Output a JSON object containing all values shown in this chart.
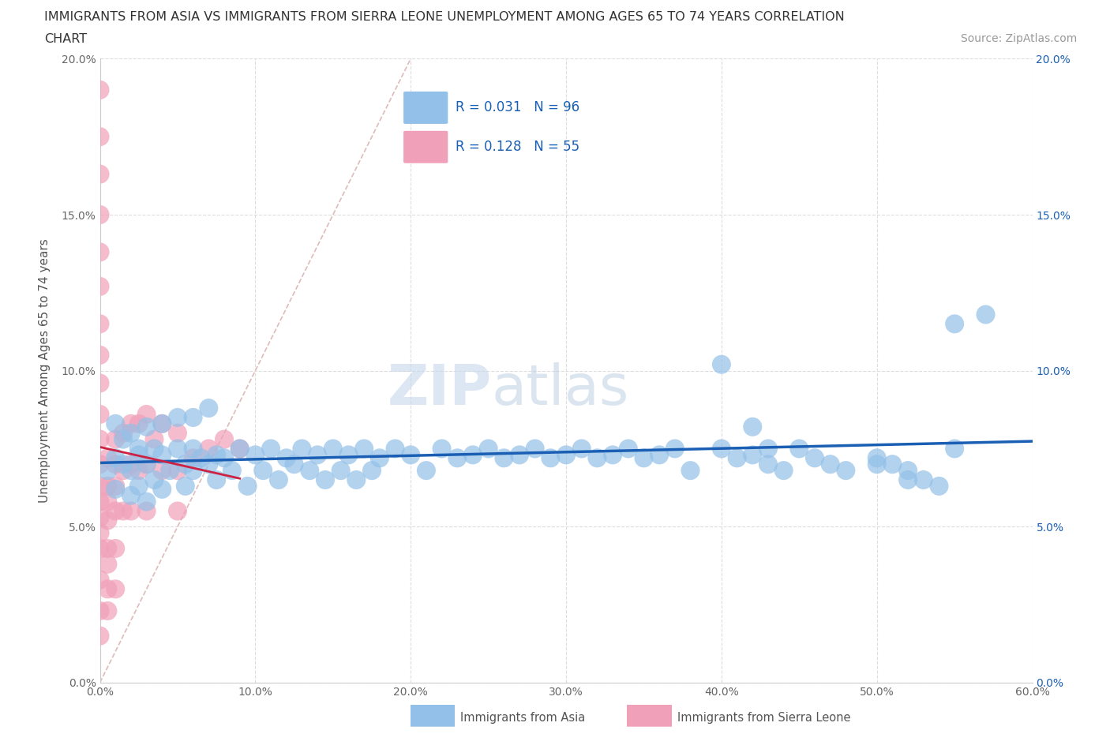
{
  "title_line1": "IMMIGRANTS FROM ASIA VS IMMIGRANTS FROM SIERRA LEONE UNEMPLOYMENT AMONG AGES 65 TO 74 YEARS CORRELATION",
  "title_line2": "CHART",
  "source": "Source: ZipAtlas.com",
  "ylabel": "Unemployment Among Ages 65 to 74 years",
  "xlim": [
    0.0,
    0.6
  ],
  "ylim": [
    0.0,
    0.2
  ],
  "xticks": [
    0.0,
    0.1,
    0.2,
    0.3,
    0.4,
    0.5,
    0.6
  ],
  "xticklabels": [
    "0.0%",
    "10.0%",
    "20.0%",
    "30.0%",
    "40.0%",
    "50.0%",
    "60.0%"
  ],
  "yticks": [
    0.0,
    0.05,
    0.1,
    0.15,
    0.2
  ],
  "yticklabels": [
    "0.0%",
    "5.0%",
    "10.0%",
    "15.0%",
    "20.0%"
  ],
  "asia_color": "#92c0e8",
  "sierra_color": "#f0a0b8",
  "trend_asia_color": "#1a5fb4",
  "trend_sierra_color": "#cc2244",
  "diagonal_color": "#ddaaaa",
  "background_color": "#ffffff",
  "grid_color": "#dddddd",
  "watermark": "ZIPatlas",
  "asia_scatter_x": [
    0.005,
    0.01,
    0.01,
    0.015,
    0.02,
    0.02,
    0.025,
    0.025,
    0.03,
    0.03,
    0.035,
    0.035,
    0.04,
    0.04,
    0.045,
    0.05,
    0.055,
    0.055,
    0.06,
    0.06,
    0.065,
    0.07,
    0.075,
    0.075,
    0.08,
    0.085,
    0.09,
    0.095,
    0.1,
    0.105,
    0.11,
    0.115,
    0.12,
    0.125,
    0.13,
    0.135,
    0.14,
    0.145,
    0.15,
    0.155,
    0.16,
    0.165,
    0.17,
    0.175,
    0.18,
    0.19,
    0.2,
    0.21,
    0.22,
    0.23,
    0.24,
    0.25,
    0.26,
    0.27,
    0.28,
    0.29,
    0.3,
    0.31,
    0.32,
    0.33,
    0.34,
    0.35,
    0.36,
    0.37,
    0.38,
    0.4,
    0.41,
    0.42,
    0.43,
    0.44,
    0.45,
    0.46,
    0.47,
    0.48,
    0.5,
    0.51,
    0.52,
    0.53,
    0.54,
    0.55,
    0.01,
    0.015,
    0.02,
    0.025,
    0.03,
    0.04,
    0.05,
    0.06,
    0.07,
    0.42,
    0.43,
    0.55,
    0.57,
    0.4,
    0.5,
    0.52
  ],
  "asia_scatter_y": [
    0.068,
    0.072,
    0.062,
    0.07,
    0.068,
    0.06,
    0.073,
    0.063,
    0.07,
    0.058,
    0.075,
    0.065,
    0.073,
    0.062,
    0.068,
    0.075,
    0.07,
    0.063,
    0.075,
    0.068,
    0.072,
    0.07,
    0.073,
    0.065,
    0.072,
    0.068,
    0.075,
    0.063,
    0.073,
    0.068,
    0.075,
    0.065,
    0.072,
    0.07,
    0.075,
    0.068,
    0.073,
    0.065,
    0.075,
    0.068,
    0.073,
    0.065,
    0.075,
    0.068,
    0.072,
    0.075,
    0.073,
    0.068,
    0.075,
    0.072,
    0.073,
    0.075,
    0.072,
    0.073,
    0.075,
    0.072,
    0.073,
    0.075,
    0.072,
    0.073,
    0.075,
    0.072,
    0.073,
    0.075,
    0.068,
    0.075,
    0.072,
    0.073,
    0.07,
    0.068,
    0.075,
    0.072,
    0.07,
    0.068,
    0.072,
    0.07,
    0.068,
    0.065,
    0.063,
    0.075,
    0.083,
    0.078,
    0.08,
    0.075,
    0.082,
    0.083,
    0.085,
    0.085,
    0.088,
    0.082,
    0.075,
    0.115,
    0.118,
    0.102,
    0.07,
    0.065
  ],
  "sierra_scatter_x": [
    0.0,
    0.0,
    0.0,
    0.0,
    0.0,
    0.0,
    0.0,
    0.0,
    0.0,
    0.0,
    0.0,
    0.0,
    0.0,
    0.0,
    0.0,
    0.0,
    0.0,
    0.0,
    0.0,
    0.0,
    0.005,
    0.005,
    0.005,
    0.005,
    0.005,
    0.005,
    0.005,
    0.005,
    0.01,
    0.01,
    0.01,
    0.01,
    0.01,
    0.01,
    0.015,
    0.015,
    0.015,
    0.02,
    0.02,
    0.02,
    0.025,
    0.025,
    0.03,
    0.03,
    0.03,
    0.035,
    0.04,
    0.04,
    0.05,
    0.05,
    0.05,
    0.06,
    0.07,
    0.08,
    0.09
  ],
  "sierra_scatter_y": [
    0.19,
    0.175,
    0.163,
    0.15,
    0.138,
    0.127,
    0.115,
    0.105,
    0.096,
    0.086,
    0.078,
    0.07,
    0.063,
    0.058,
    0.053,
    0.048,
    0.043,
    0.033,
    0.023,
    0.015,
    0.072,
    0.063,
    0.058,
    0.052,
    0.043,
    0.038,
    0.03,
    0.023,
    0.078,
    0.07,
    0.063,
    0.055,
    0.043,
    0.03,
    0.08,
    0.068,
    0.055,
    0.083,
    0.07,
    0.055,
    0.083,
    0.068,
    0.086,
    0.07,
    0.055,
    0.078,
    0.083,
    0.068,
    0.08,
    0.068,
    0.055,
    0.072,
    0.075,
    0.078,
    0.075
  ]
}
